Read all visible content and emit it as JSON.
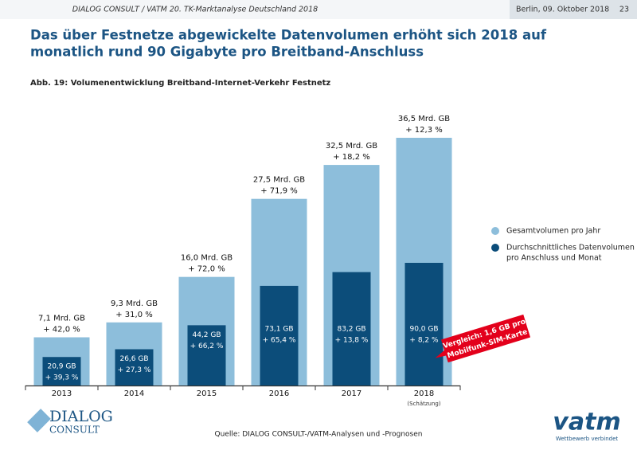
{
  "header": {
    "left": "DIALOG CONSULT / VATM 20. TK-Marktanalyse Deutschland 2018",
    "date": "Berlin, 09. Oktober 2018",
    "page": "23"
  },
  "chart_data": {
    "type": "bar",
    "title": [
      "Das über Festnetze abgewickelte Datenvolumen erhöht sich 2018 auf",
      "monatlich rund 90 Gigabyte pro Breitband-Anschluss"
    ],
    "subtitle": "Abb. 19: Volumenentwicklung Breitband-Internet-Verkehr Festnetz",
    "categories": [
      "2013",
      "2014",
      "2015",
      "2016",
      "2017",
      "2018"
    ],
    "category_notes": [
      null,
      null,
      null,
      null,
      null,
      "(Schätzung)"
    ],
    "series": [
      {
        "name": "Gesamtvolumen pro Jahr",
        "color": "#8dbedb",
        "values": [
          7.1,
          9.3,
          16.0,
          27.5,
          32.5,
          36.5
        ],
        "value_labels": [
          "7,1 Mrd. GB",
          "9,3 Mrd. GB",
          "16,0 Mrd. GB",
          "27,5 Mrd. GB",
          "32,5 Mrd. GB",
          "36,5 Mrd. GB"
        ],
        "growth": [
          42.0,
          31.0,
          72.0,
          71.9,
          18.2,
          12.3
        ],
        "growth_labels": [
          "+ 42,0 %",
          "+ 31,0 %",
          "+ 72,0 %",
          "+ 71,9 %",
          "+ 18,2 %",
          "+ 12,3 %"
        ]
      },
      {
        "name": "Durchschnittliches Datenvolumen pro Anschluss und Monat",
        "color": "#0c4d7a",
        "values": [
          20.9,
          26.6,
          44.2,
          73.1,
          83.2,
          90.0
        ],
        "value_labels": [
          "20,9 GB",
          "26,6 GB",
          "44,2 GB",
          "73,1 GB",
          "83,2 GB",
          "90,0 GB"
        ],
        "growth": [
          39.3,
          27.3,
          66.2,
          65.4,
          13.8,
          8.2
        ],
        "growth_labels": [
          "+ 39,3 %",
          "+ 27,3 %",
          "+ 66,2 %",
          "+ 65,4 %",
          "+ 13,8 %",
          "+ 8,2 %"
        ]
      }
    ],
    "legend": [
      "Gesamtvolumen pro Jahr",
      [
        "Durchschnittliches Datenvolumen",
        "pro Anschluss und Monat"
      ]
    ],
    "annotation": [
      "Vergleich: 1,6 GB pro",
      "Mobilfunk-SIM-Karte"
    ]
  },
  "source": "Quelle: DIALOG CONSULT-/VATM-Analysen und -Prognosen",
  "logos": {
    "dialog": "DIALOG",
    "consult": "CONSULT",
    "vatm": "vatm",
    "vatm_tagline": "Wettbewerb verbindet"
  }
}
